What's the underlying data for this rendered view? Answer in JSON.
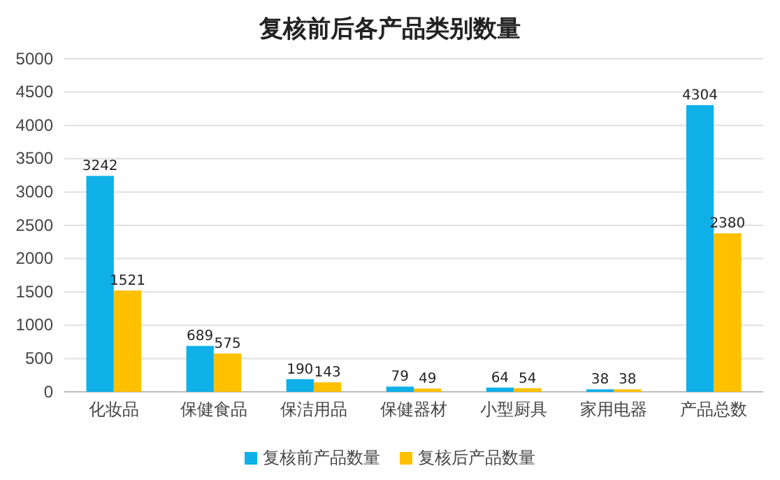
{
  "chart_data": {
    "type": "bar",
    "title": "复核前后各产品类别数量",
    "categories": [
      "化妆品",
      "保健食品",
      "保洁用品",
      "保健器材",
      "小型厨具",
      "家用电器",
      "产品总数"
    ],
    "series": [
      {
        "name": "复核前产品数量",
        "color": "#0fb0e8",
        "values": [
          3242,
          689,
          190,
          79,
          64,
          38,
          4304
        ]
      },
      {
        "name": "复核后产品数量",
        "color": "#ffc000",
        "values": [
          1521,
          575,
          143,
          49,
          54,
          38,
          2380
        ]
      }
    ],
    "ylim": [
      0,
      5000
    ],
    "yticks": [
      0,
      500,
      1000,
      1500,
      2000,
      2500,
      3000,
      3500,
      4000,
      4500,
      5000
    ],
    "grid": "y",
    "legend": "bottom",
    "data_labels": true
  }
}
